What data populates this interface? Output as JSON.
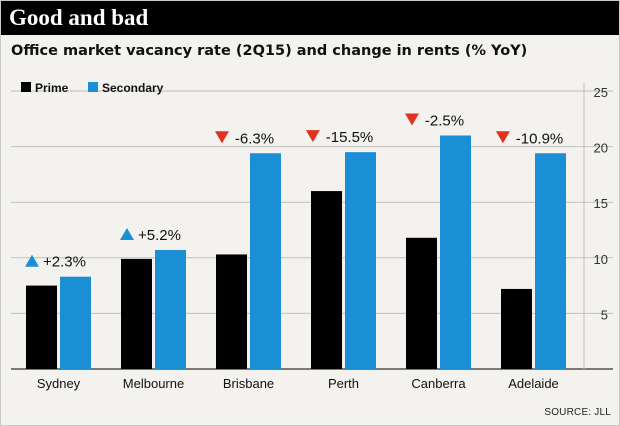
{
  "header": {
    "title": "Good and bad",
    "subtitle": "Office market vacancy rate (2Q15) and change in rents (% YoY)"
  },
  "source": "SOURCE: JLL",
  "colors": {
    "prime": "#000000",
    "secondary": "#1a8fd6",
    "up_marker": "#1a8fd6",
    "down_marker": "#e2321f",
    "grid": "#bfbfbf",
    "background": "#f3f2ee"
  },
  "chart_data": {
    "type": "bar",
    "title": "Office market vacancy rate (2Q15) and change in rents (% YoY)",
    "xlabel": "",
    "ylabel": "",
    "ylim": [
      0,
      25
    ],
    "yticks": [
      5,
      10,
      15,
      20,
      25
    ],
    "y_axis_position": "right",
    "grid": true,
    "legend_position": "top-left",
    "categories": [
      "Sydney",
      "Melbourne",
      "Brisbane",
      "Perth",
      "Canberra",
      "Adelaide"
    ],
    "series": [
      {
        "name": "Prime",
        "color": "#000000",
        "values": [
          7.5,
          9.9,
          10.3,
          16.0,
          11.8,
          7.2
        ]
      },
      {
        "name": "Secondary",
        "color": "#1a8fd6",
        "values": [
          8.3,
          10.7,
          19.4,
          19.5,
          21.0,
          19.4
        ]
      }
    ],
    "annotations": [
      {
        "category": "Sydney",
        "label": "+2.3%",
        "direction": "up"
      },
      {
        "category": "Melbourne",
        "label": "+5.2%",
        "direction": "up"
      },
      {
        "category": "Brisbane",
        "label": "-6.3%",
        "direction": "down"
      },
      {
        "category": "Perth",
        "label": "-15.5%",
        "direction": "down"
      },
      {
        "category": "Canberra",
        "label": "-2.5%",
        "direction": "down"
      },
      {
        "category": "Adelaide",
        "label": "-10.9%",
        "direction": "down"
      }
    ]
  }
}
